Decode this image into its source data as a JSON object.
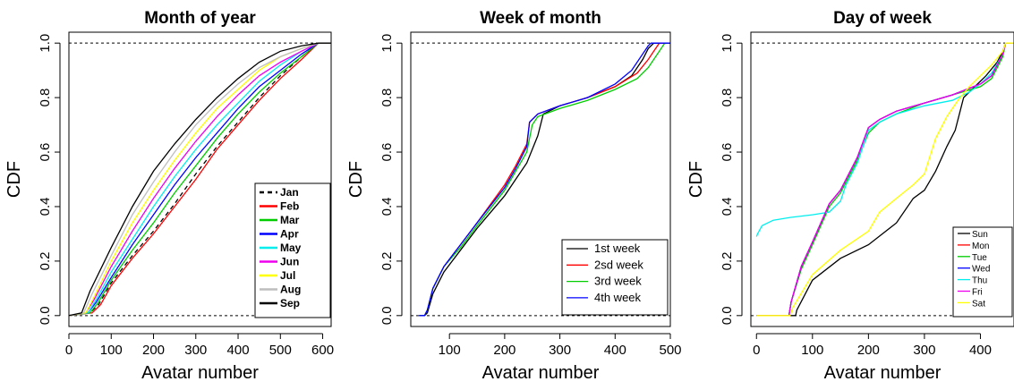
{
  "chart_data": [
    {
      "type": "line",
      "title": "Month of year",
      "xlabel": "Avatar number",
      "ylabel": "CDF",
      "xlim": [
        0,
        620
      ],
      "ylim": [
        0,
        1
      ],
      "xticks": [
        0,
        100,
        200,
        300,
        400,
        500,
        600
      ],
      "yticks": [
        0.0,
        0.2,
        0.4,
        0.6,
        0.8,
        1.0
      ],
      "reference_lines": [
        0,
        1
      ],
      "legend_position": "bottom-right",
      "series": [
        {
          "name": "Jan",
          "color": "#000000",
          "dash": true,
          "x": [
            0,
            50,
            70,
            100,
            150,
            200,
            250,
            300,
            350,
            400,
            450,
            500,
            550,
            590,
            620
          ],
          "y": [
            0,
            0.01,
            0.04,
            0.12,
            0.22,
            0.31,
            0.41,
            0.52,
            0.62,
            0.71,
            0.8,
            0.88,
            0.95,
            1.0,
            1.0
          ]
        },
        {
          "name": "Feb",
          "color": "#ff0000",
          "x": [
            0,
            55,
            75,
            100,
            150,
            200,
            250,
            300,
            350,
            400,
            450,
            500,
            550,
            590,
            620
          ],
          "y": [
            0,
            0.01,
            0.04,
            0.11,
            0.21,
            0.3,
            0.4,
            0.5,
            0.61,
            0.7,
            0.79,
            0.87,
            0.94,
            1.0,
            1.0
          ]
        },
        {
          "name": "Mar",
          "color": "#00cd00",
          "x": [
            0,
            50,
            70,
            100,
            150,
            200,
            250,
            300,
            350,
            400,
            450,
            500,
            550,
            590,
            620
          ],
          "y": [
            0,
            0.01,
            0.05,
            0.13,
            0.24,
            0.34,
            0.45,
            0.55,
            0.65,
            0.74,
            0.82,
            0.89,
            0.95,
            1.0,
            1.0
          ]
        },
        {
          "name": "Apr",
          "color": "#0000ff",
          "x": [
            0,
            45,
            65,
            100,
            150,
            200,
            250,
            300,
            350,
            400,
            450,
            500,
            550,
            590,
            620
          ],
          "y": [
            0,
            0.01,
            0.05,
            0.14,
            0.26,
            0.37,
            0.48,
            0.58,
            0.67,
            0.76,
            0.84,
            0.9,
            0.96,
            1.0,
            1.0
          ]
        },
        {
          "name": "May",
          "color": "#00eeee",
          "x": [
            0,
            45,
            65,
            100,
            150,
            200,
            250,
            300,
            350,
            400,
            450,
            500,
            550,
            590,
            620
          ],
          "y": [
            0,
            0.01,
            0.06,
            0.16,
            0.28,
            0.4,
            0.51,
            0.61,
            0.7,
            0.78,
            0.86,
            0.92,
            0.97,
            1.0,
            1.0
          ]
        },
        {
          "name": "Jun",
          "color": "#ee00ee",
          "x": [
            0,
            40,
            60,
            100,
            150,
            200,
            250,
            300,
            350,
            400,
            450,
            500,
            550,
            590,
            620
          ],
          "y": [
            0,
            0.01,
            0.06,
            0.18,
            0.31,
            0.43,
            0.54,
            0.64,
            0.73,
            0.81,
            0.88,
            0.93,
            0.97,
            1.0,
            1.0
          ]
        },
        {
          "name": "Jul",
          "color": "#ffff00",
          "x": [
            0,
            40,
            60,
            100,
            150,
            200,
            250,
            300,
            350,
            400,
            450,
            500,
            550,
            590,
            620
          ],
          "y": [
            0,
            0.01,
            0.07,
            0.2,
            0.34,
            0.46,
            0.57,
            0.67,
            0.76,
            0.83,
            0.9,
            0.95,
            0.98,
            1.0,
            1.0
          ]
        },
        {
          "name": "Aug",
          "color": "#bebebe",
          "x": [
            0,
            35,
            55,
            100,
            150,
            200,
            250,
            300,
            350,
            400,
            450,
            500,
            550,
            590,
            620
          ],
          "y": [
            0,
            0.01,
            0.08,
            0.22,
            0.37,
            0.49,
            0.6,
            0.7,
            0.78,
            0.85,
            0.91,
            0.95,
            0.98,
            1.0,
            1.0
          ]
        },
        {
          "name": "Sep",
          "color": "#000000",
          "x": [
            0,
            30,
            50,
            100,
            150,
            200,
            250,
            300,
            350,
            400,
            450,
            500,
            550,
            590,
            620
          ],
          "y": [
            0,
            0.01,
            0.09,
            0.25,
            0.4,
            0.53,
            0.63,
            0.72,
            0.8,
            0.87,
            0.93,
            0.97,
            0.99,
            1.0,
            1.0
          ]
        }
      ]
    },
    {
      "type": "line",
      "title": "Week of month",
      "xlabel": "Avatar number",
      "ylabel": "CDF",
      "xlim": [
        30,
        500
      ],
      "ylim": [
        0,
        1
      ],
      "xticks": [
        100,
        200,
        300,
        400,
        500
      ],
      "yticks": [
        0.0,
        0.2,
        0.4,
        0.6,
        0.8,
        1.0
      ],
      "reference_lines": [
        0,
        1
      ],
      "legend_position": "bottom-right",
      "series": [
        {
          "name": "1st week",
          "color": "#000000",
          "x": [
            45,
            55,
            60,
            70,
            90,
            120,
            150,
            200,
            220,
            240,
            260,
            270,
            300,
            350,
            400,
            430,
            450,
            460,
            470,
            480,
            500
          ],
          "y": [
            0,
            0,
            0.01,
            0.08,
            0.16,
            0.24,
            0.32,
            0.44,
            0.5,
            0.56,
            0.66,
            0.74,
            0.77,
            0.8,
            0.84,
            0.88,
            0.94,
            0.98,
            1.0,
            1.0,
            1.0
          ]
        },
        {
          "name": "2sd week",
          "color": "#ff0000",
          "x": [
            45,
            55,
            60,
            70,
            90,
            120,
            150,
            200,
            220,
            240,
            245,
            260,
            300,
            350,
            400,
            440,
            460,
            470,
            480,
            500
          ],
          "y": [
            0,
            0,
            0.02,
            0.1,
            0.18,
            0.26,
            0.34,
            0.48,
            0.55,
            0.63,
            0.71,
            0.74,
            0.77,
            0.8,
            0.84,
            0.89,
            0.94,
            0.97,
            1.0,
            1.0
          ]
        },
        {
          "name": "3rd week",
          "color": "#00cd00",
          "x": [
            45,
            55,
            60,
            70,
            90,
            120,
            150,
            200,
            220,
            240,
            250,
            260,
            300,
            350,
            400,
            440,
            460,
            480,
            490,
            500
          ],
          "y": [
            0,
            0,
            0.02,
            0.1,
            0.18,
            0.25,
            0.33,
            0.46,
            0.53,
            0.6,
            0.7,
            0.73,
            0.76,
            0.79,
            0.83,
            0.87,
            0.91,
            0.97,
            1.0,
            1.0
          ]
        },
        {
          "name": "4th week",
          "color": "#0000ff",
          "x": [
            45,
            55,
            60,
            70,
            90,
            120,
            150,
            200,
            220,
            240,
            245,
            260,
            300,
            350,
            400,
            430,
            450,
            460,
            465,
            500
          ],
          "y": [
            0,
            0,
            0.02,
            0.1,
            0.18,
            0.26,
            0.34,
            0.47,
            0.54,
            0.62,
            0.71,
            0.74,
            0.77,
            0.8,
            0.85,
            0.9,
            0.96,
            0.99,
            1.0,
            1.0
          ]
        }
      ]
    },
    {
      "type": "line",
      "title": "Day of week",
      "xlabel": "Avatar number",
      "ylabel": "CDF",
      "xlim": [
        -10,
        460
      ],
      "ylim": [
        0,
        1
      ],
      "xticks": [
        0,
        100,
        200,
        300,
        400
      ],
      "yticks": [
        0.0,
        0.2,
        0.4,
        0.6,
        0.8,
        1.0
      ],
      "reference_lines": [
        0,
        1
      ],
      "legend_position": "bottom-right",
      "series": [
        {
          "name": "Sun",
          "color": "#000000",
          "x": [
            0,
            70,
            72,
            100,
            150,
            200,
            250,
            280,
            300,
            320,
            340,
            355,
            370,
            390,
            410,
            430,
            440,
            445,
            460
          ],
          "y": [
            0,
            0,
            0.02,
            0.13,
            0.21,
            0.26,
            0.34,
            0.43,
            0.46,
            0.53,
            0.62,
            0.68,
            0.8,
            0.84,
            0.88,
            0.93,
            0.97,
            1.0,
            1.0
          ]
        },
        {
          "name": "Mon",
          "color": "#ff0000",
          "x": [
            0,
            58,
            62,
            80,
            100,
            130,
            150,
            180,
            200,
            220,
            250,
            300,
            350,
            400,
            420,
            440,
            445,
            460
          ],
          "y": [
            0,
            0,
            0.05,
            0.18,
            0.27,
            0.41,
            0.46,
            0.58,
            0.69,
            0.72,
            0.75,
            0.78,
            0.81,
            0.85,
            0.88,
            0.96,
            1.0,
            1.0
          ]
        },
        {
          "name": "Tue",
          "color": "#00cd00",
          "x": [
            0,
            58,
            62,
            80,
            100,
            130,
            150,
            180,
            200,
            220,
            250,
            300,
            350,
            400,
            420,
            440,
            445,
            460
          ],
          "y": [
            0,
            0,
            0.05,
            0.17,
            0.26,
            0.4,
            0.45,
            0.57,
            0.67,
            0.71,
            0.74,
            0.78,
            0.81,
            0.84,
            0.87,
            0.95,
            1.0,
            1.0
          ]
        },
        {
          "name": "Wed",
          "color": "#0000ff",
          "x": [
            0,
            58,
            62,
            80,
            100,
            130,
            150,
            180,
            200,
            220,
            250,
            300,
            350,
            400,
            420,
            440,
            445,
            460
          ],
          "y": [
            0,
            0,
            0.05,
            0.18,
            0.27,
            0.41,
            0.46,
            0.58,
            0.69,
            0.72,
            0.75,
            0.78,
            0.81,
            0.85,
            0.88,
            0.96,
            1.0,
            1.0
          ]
        },
        {
          "name": "Thu",
          "color": "#00eeee",
          "x": [
            0,
            2,
            10,
            30,
            60,
            100,
            130,
            150,
            160,
            180,
            200,
            220,
            250,
            300,
            350,
            380,
            400,
            420,
            440,
            445,
            460
          ],
          "y": [
            0.29,
            0.3,
            0.33,
            0.35,
            0.36,
            0.37,
            0.38,
            0.42,
            0.48,
            0.56,
            0.68,
            0.71,
            0.74,
            0.77,
            0.79,
            0.82,
            0.85,
            0.89,
            0.96,
            1.0,
            1.0
          ]
        },
        {
          "name": "Fri",
          "color": "#ee00ee",
          "x": [
            0,
            58,
            62,
            80,
            100,
            130,
            150,
            180,
            200,
            220,
            250,
            300,
            350,
            400,
            420,
            440,
            445,
            460
          ],
          "y": [
            0,
            0,
            0.05,
            0.18,
            0.27,
            0.41,
            0.46,
            0.58,
            0.69,
            0.72,
            0.75,
            0.78,
            0.81,
            0.85,
            0.88,
            0.96,
            1.0,
            1.0
          ]
        },
        {
          "name": "Sat",
          "color": "#ffff00",
          "x": [
            0,
            60,
            65,
            100,
            150,
            200,
            220,
            250,
            280,
            300,
            320,
            340,
            360,
            380,
            400,
            420,
            440,
            445,
            460
          ],
          "y": [
            0,
            0,
            0.03,
            0.15,
            0.24,
            0.31,
            0.38,
            0.43,
            0.48,
            0.52,
            0.65,
            0.73,
            0.79,
            0.84,
            0.88,
            0.92,
            0.97,
            1.0,
            1.0
          ]
        }
      ]
    }
  ]
}
